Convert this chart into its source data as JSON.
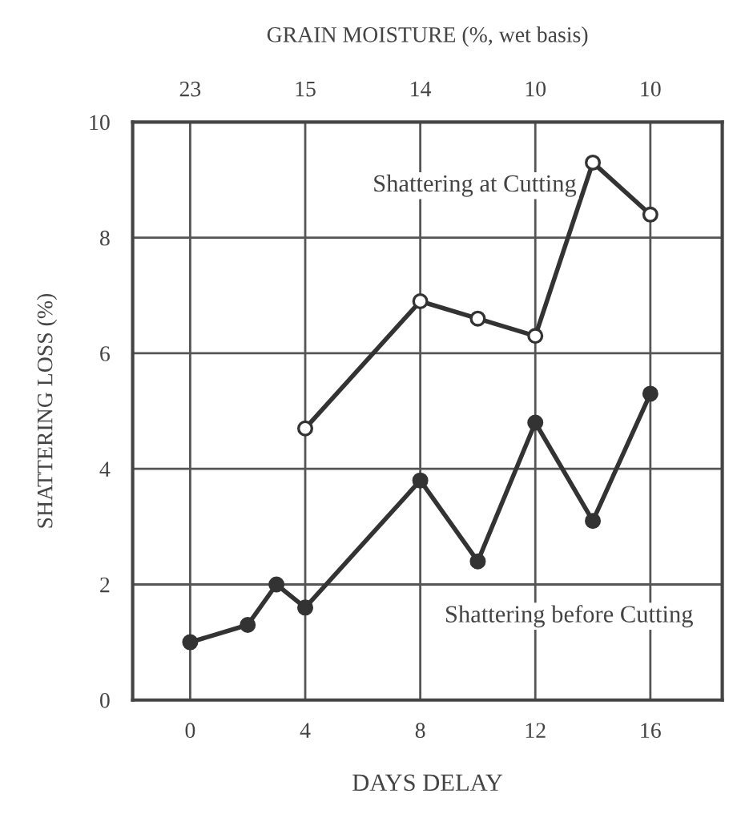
{
  "chart_data": {
    "type": "line",
    "xlabel": "DAYS DELAY",
    "ylabel": "SHATTERING LOSS (%)",
    "x2label": "GRAIN MOISTURE (%, wet basis)",
    "series": [
      {
        "x": [
          4,
          8,
          10,
          12,
          14,
          16
        ],
        "values": [
          4.7,
          6.9,
          6.6,
          6.3,
          9.3,
          8.4
        ],
        "color": "#333333",
        "marker": "circle"
      },
      {
        "x": [
          0,
          2,
          3,
          4,
          8,
          10,
          12,
          14,
          16
        ],
        "values": [
          1.0,
          1.3,
          2.0,
          1.6,
          3.8,
          2.4,
          4.8,
          3.1,
          5.3
        ],
        "color": "#333333",
        "marker": "circle"
      }
    ],
    "annotations": [
      "Shattering at Cutting",
      "Shattering before Cutting",
      "23",
      "15",
      "14",
      "10",
      "10"
    ],
    "xlim": [
      -2,
      18.5
    ],
    "xticks": [
      0,
      4,
      8,
      12,
      16
    ],
    "ylim": [
      0,
      10
    ],
    "yticks": [
      0,
      2,
      4,
      6,
      8,
      10
    ],
    "grid": true,
    "line_style": "solid"
  }
}
